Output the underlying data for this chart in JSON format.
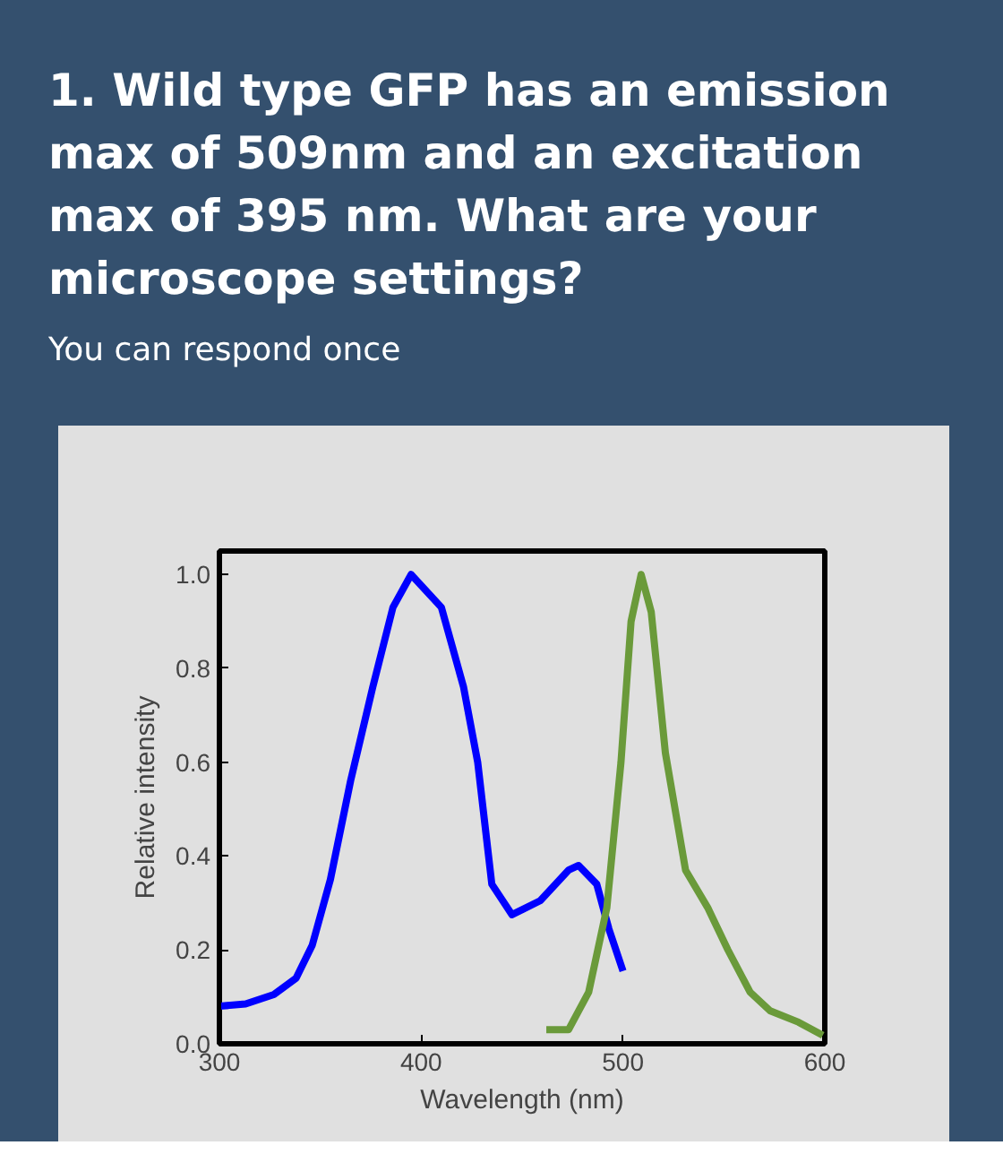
{
  "chart_data": {
    "type": "line",
    "title": "1. Wild type GFP has an emission max of 509nm and an excitation max of 395 nm. What are your microscope settings?",
    "subtitle": "You can respond once",
    "xlabel": "Wavelength (nm)",
    "ylabel": "Relative intensity",
    "xlim": [
      300,
      600
    ],
    "ylim": [
      0,
      1.05
    ],
    "xticks": [
      300,
      400,
      500,
      600
    ],
    "yticks": [
      {
        "value": 0,
        "label": "0.0"
      },
      {
        "value": 0.2,
        "label": "0.2"
      },
      {
        "value": 0.4,
        "label": "0.4"
      },
      {
        "value": 0.6,
        "label": "0.6"
      },
      {
        "value": 0.8,
        "label": "0.8"
      },
      {
        "value": 1.0,
        "label": "1.0"
      }
    ],
    "grid": false,
    "line_style": "solid",
    "series": [
      {
        "color": "#0000ff",
        "x": [
          300,
          313,
          327,
          338,
          346,
          355,
          365,
          376,
          386,
          395,
          410,
          421,
          428,
          435,
          445,
          459,
          473,
          478,
          487,
          493,
          500
        ],
        "values": [
          0.08,
          0.085,
          0.105,
          0.14,
          0.21,
          0.35,
          0.56,
          0.76,
          0.93,
          1.0,
          0.93,
          0.76,
          0.6,
          0.34,
          0.275,
          0.305,
          0.37,
          0.38,
          0.34,
          0.245,
          0.155
        ]
      },
      {
        "color": "#6a9a3a",
        "x": [
          462,
          473,
          483,
          492,
          499,
          504,
          509,
          514,
          521,
          531,
          542,
          552,
          563,
          573,
          587,
          599
        ],
        "values": [
          0.03,
          0.03,
          0.11,
          0.29,
          0.6,
          0.9,
          1.0,
          0.92,
          0.62,
          0.37,
          0.29,
          0.2,
          0.11,
          0.07,
          0.046,
          0.018
        ]
      }
    ]
  }
}
